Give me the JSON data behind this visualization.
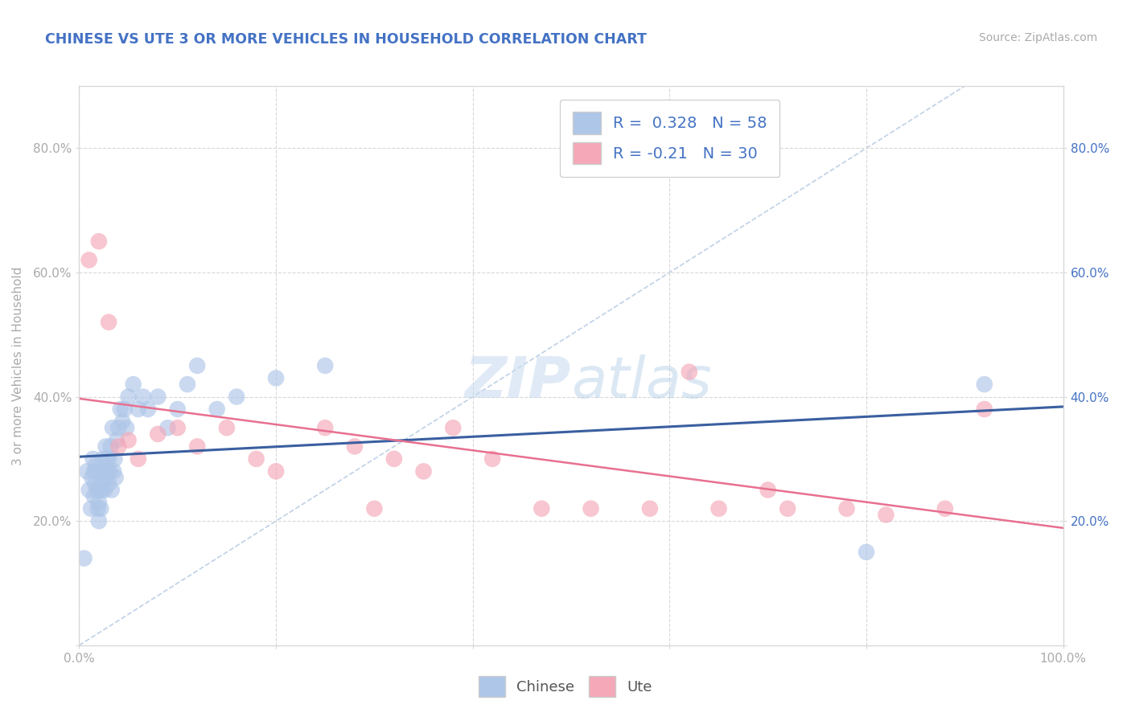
{
  "title": "CHINESE VS UTE 3 OR MORE VEHICLES IN HOUSEHOLD CORRELATION CHART",
  "source": "Source: ZipAtlas.com",
  "ylabel": "3 or more Vehicles in Household",
  "xlabel": "",
  "xlim": [
    0.0,
    1.0
  ],
  "ylim": [
    0.0,
    0.9
  ],
  "xticks": [
    0.0,
    0.2,
    0.4,
    0.6,
    0.8,
    1.0
  ],
  "xticklabels": [
    "0.0%",
    "",
    "",
    "",
    "",
    "100.0%"
  ],
  "yticks": [
    0.0,
    0.2,
    0.4,
    0.6,
    0.8
  ],
  "yticklabels": [
    "",
    "20.0%",
    "40.0%",
    "60.0%",
    "80.0%"
  ],
  "right_yticks": [
    0.0,
    0.2,
    0.4,
    0.6,
    0.8
  ],
  "right_yticklabels": [
    "",
    "20.0%",
    "40.0%",
    "60.0%",
    "80.0%"
  ],
  "chinese_R": 0.328,
  "chinese_N": 58,
  "ute_R": -0.21,
  "ute_N": 30,
  "chinese_color": "#aec6e8",
  "ute_color": "#f4a8b8",
  "chinese_line_color": "#3a5fa0",
  "ute_line_color": "#e87090",
  "diagonal_color": "#b8cce4",
  "background_color": "#ffffff",
  "grid_color": "#d8d8d8",
  "title_color": "#4472c4",
  "axis_color": "#aaaaaa",
  "right_axis_color": "#4472c4",
  "legend_box_color_chinese": "#aec6e8",
  "legend_box_color_ute": "#f4a8b8",
  "chinese_x": [
    0.005,
    0.008,
    0.01,
    0.012,
    0.013,
    0.014,
    0.015,
    0.015,
    0.016,
    0.017,
    0.018,
    0.018,
    0.019,
    0.02,
    0.02,
    0.021,
    0.022,
    0.022,
    0.023,
    0.023,
    0.024,
    0.025,
    0.026,
    0.027,
    0.028,
    0.028,
    0.029,
    0.03,
    0.03,
    0.031,
    0.032,
    0.033,
    0.034,
    0.035,
    0.036,
    0.037,
    0.038,
    0.04,
    0.042,
    0.044,
    0.046,
    0.048,
    0.05,
    0.055,
    0.06,
    0.065,
    0.07,
    0.08,
    0.09,
    0.1,
    0.11,
    0.12,
    0.14,
    0.16,
    0.2,
    0.25,
    0.8,
    0.92
  ],
  "chinese_y": [
    0.14,
    0.28,
    0.25,
    0.22,
    0.27,
    0.3,
    0.24,
    0.28,
    0.26,
    0.29,
    0.25,
    0.28,
    0.22,
    0.2,
    0.23,
    0.25,
    0.28,
    0.22,
    0.25,
    0.27,
    0.3,
    0.28,
    0.25,
    0.32,
    0.27,
    0.3,
    0.28,
    0.26,
    0.3,
    0.28,
    0.32,
    0.25,
    0.35,
    0.28,
    0.3,
    0.27,
    0.33,
    0.35,
    0.38,
    0.36,
    0.38,
    0.35,
    0.4,
    0.42,
    0.38,
    0.4,
    0.38,
    0.4,
    0.35,
    0.38,
    0.42,
    0.45,
    0.38,
    0.4,
    0.43,
    0.45,
    0.15,
    0.42
  ],
  "ute_x": [
    0.01,
    0.02,
    0.03,
    0.04,
    0.05,
    0.06,
    0.08,
    0.1,
    0.12,
    0.15,
    0.18,
    0.2,
    0.25,
    0.28,
    0.3,
    0.32,
    0.35,
    0.38,
    0.42,
    0.47,
    0.52,
    0.58,
    0.62,
    0.65,
    0.7,
    0.72,
    0.78,
    0.82,
    0.88,
    0.92
  ],
  "ute_y": [
    0.62,
    0.65,
    0.52,
    0.32,
    0.33,
    0.3,
    0.34,
    0.35,
    0.32,
    0.35,
    0.3,
    0.28,
    0.35,
    0.32,
    0.22,
    0.3,
    0.28,
    0.35,
    0.3,
    0.22,
    0.22,
    0.22,
    0.44,
    0.22,
    0.25,
    0.22,
    0.22,
    0.21,
    0.22,
    0.38
  ]
}
